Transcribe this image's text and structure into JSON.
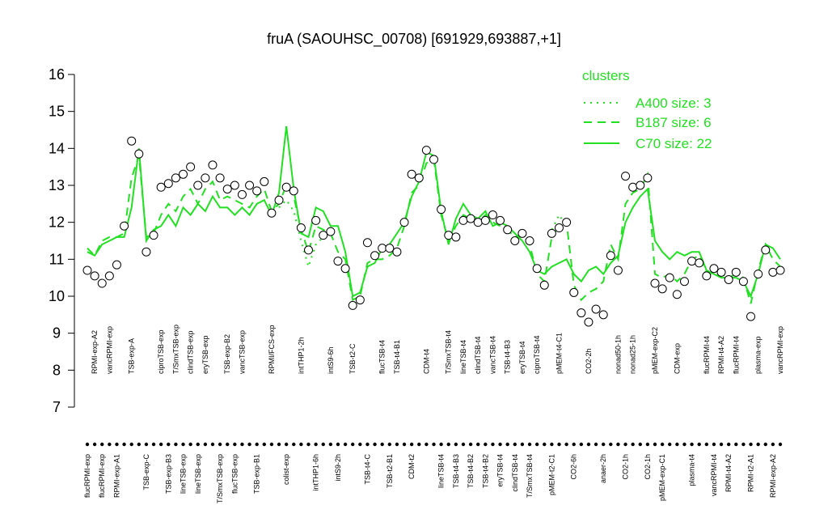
{
  "chart_data": {
    "type": "scatter",
    "title": "fruA (SAOUHSC_00708) [691929,693887,+1]",
    "ylim": [
      7,
      16
    ],
    "yticks": [
      7,
      8,
      9,
      10,
      11,
      12,
      13,
      14,
      15,
      16
    ],
    "grid": false,
    "legend_title": "clusters",
    "legend": "topright",
    "marker_color": "#000000",
    "categories": [
      "flucRPMI-exp",
      "RPMI-exp-A2",
      "flucRPMI-exp",
      "vancRPMI-exp",
      "RPMI-exp-A1",
      null,
      "TSB-exp-A",
      null,
      "TSB-exp-C",
      null,
      "ciproTSB-exp",
      "TSB-exp-B3",
      "T/SmxTSB-exp",
      "lineTSB-exp",
      "clindTSB-exp",
      "lineTSB-exp",
      "eryTSB-exp",
      null,
      "T/SmxTSB-exp",
      "TSB-exp-B2",
      "flucTSB-exp",
      "vancTSB-exp",
      null,
      "TSB-exp-B1",
      null,
      "RPMI/FCS-exp",
      null,
      "colist-exp",
      null,
      "intTHP1-2h",
      null,
      "intTHP1-6h",
      null,
      "intS9-6h",
      "intS9-2h",
      null,
      "TSB-t2-C",
      null,
      "TSB-t4-C",
      null,
      "flucTSB-t4",
      "TSB-t2-B1",
      "TSB-t4-B1",
      null,
      "CDM-t2",
      null,
      "CDM-t4",
      null,
      "lineTSB-t4",
      "T/SmxTSB-t4",
      "TSB-t4-B3",
      "lineTSB-t4",
      "TSB-t4-B2",
      "clindTSB-t4",
      "TSB-t4-B2",
      "vancTSB-t4",
      "eryTSB-t4",
      "TSB-t4-B3",
      "clindTSB-t4",
      "eryTSB-t4",
      "T/SmxTSB-t4",
      "ciproTSB-t4",
      null,
      "pMEM-t2-C1",
      "pMEM-t4-C1",
      null,
      "CO2-6h",
      null,
      "CO2-2h",
      null,
      "anaer-2h",
      null,
      "nonad50-1h",
      "CO2-1h",
      "nonad25-1h",
      null,
      "CO2-1h",
      "pMEM-exp-C2",
      "pMEM-exp-C1",
      null,
      "CDM-exp",
      null,
      "plasma-t4",
      null,
      "flucRPMI-t4",
      "vancRPMI-t4",
      "RPMI-t4-A2",
      "RPMI-t4-A2",
      "flucRPMI-t4",
      null,
      "RPMI-t2-A1",
      "plasma-exp",
      null,
      "RPMI-exp-A2",
      "vancRPMI-exp"
    ],
    "values": [
      10.7,
      10.55,
      10.35,
      10.55,
      10.85,
      11.9,
      14.2,
      13.85,
      11.2,
      11.65,
      12.95,
      13.05,
      13.2,
      13.3,
      13.5,
      13.0,
      13.2,
      13.55,
      13.2,
      12.9,
      13.0,
      12.75,
      13.0,
      12.85,
      13.1,
      12.25,
      12.6,
      12.95,
      12.85,
      11.85,
      11.25,
      12.05,
      11.65,
      11.75,
      10.95,
      10.75,
      9.75,
      9.9,
      11.45,
      11.1,
      11.3,
      11.3,
      11.2,
      12.0,
      13.3,
      13.2,
      13.95,
      13.7,
      12.35,
      11.65,
      11.6,
      12.05,
      12.1,
      12.0,
      12.05,
      12.2,
      12.05,
      11.8,
      11.5,
      11.7,
      11.5,
      10.75,
      10.3,
      11.7,
      11.85,
      12.0,
      10.1,
      9.55,
      9.3,
      9.65,
      9.5,
      11.1,
      10.7,
      13.25,
      12.95,
      13.0,
      13.2,
      10.35,
      10.2,
      10.5,
      10.05,
      10.4,
      10.95,
      10.9,
      10.55,
      10.75,
      10.65,
      10.45,
      10.65,
      10.4,
      9.45,
      10.6,
      11.25,
      10.65,
      10.7
    ],
    "series": [
      {
        "name": "A400 size: 3",
        "color": "#22e022",
        "style": "dotted",
        "values": [
          null,
          null,
          null,
          null,
          null,
          null,
          null,
          null,
          null,
          null,
          null,
          null,
          null,
          null,
          null,
          null,
          null,
          null,
          null,
          null,
          null,
          null,
          null,
          null,
          null,
          null,
          12.4,
          12.6,
          12.3,
          11.5,
          10.8,
          11.4,
          11.6,
          null,
          null,
          null,
          null,
          null,
          null,
          null,
          null,
          null,
          null,
          null,
          null,
          null,
          null,
          null,
          null,
          null,
          null,
          null,
          null,
          null,
          null,
          null,
          null,
          null,
          null,
          null,
          null,
          null,
          null,
          11.8,
          12.2,
          11.9,
          null,
          null,
          null,
          null,
          null,
          null,
          null,
          null,
          null,
          null,
          null,
          null,
          null,
          null,
          null,
          null,
          null,
          null,
          null,
          null,
          null,
          null,
          null,
          null,
          null,
          null,
          null,
          null,
          null
        ]
      },
      {
        "name": "B187 size: 6",
        "color": "#22e022",
        "style": "dashed",
        "values": [
          11.3,
          11.1,
          11.5,
          11.6,
          11.6,
          11.7,
          13.2,
          13.8,
          11.6,
          11.7,
          12.2,
          12.5,
          12.3,
          12.7,
          12.9,
          12.5,
          12.9,
          13.1,
          12.6,
          12.7,
          12.6,
          12.5,
          12.4,
          12.7,
          12.9,
          12.3,
          12.5,
          13.0,
          12.7,
          11.8,
          11.2,
          11.9,
          11.8,
          11.7,
          11.2,
          11.0,
          9.9,
          10.0,
          10.9,
          11.0,
          11.0,
          11.1,
          11.3,
          11.9,
          12.8,
          13.0,
          13.6,
          13.7,
          12.2,
          11.5,
          11.9,
          12.2,
          12.1,
          12.0,
          12.2,
          12.0,
          11.9,
          11.8,
          11.6,
          11.7,
          11.4,
          10.6,
          10.4,
          11.6,
          11.9,
          12.0,
          10.3,
          9.9,
          10.1,
          10.2,
          10.4,
          11.4,
          11.0,
          12.5,
          12.8,
          12.9,
          13.3,
          10.6,
          10.5,
          10.6,
          10.4,
          10.6,
          11.0,
          11.1,
          10.6,
          10.6,
          10.6,
          10.5,
          10.6,
          10.5,
          9.8,
          10.7,
          11.4,
          11.0,
          10.8
        ]
      },
      {
        "name": "C70 size: 22",
        "color": "#22e022",
        "style": "solid",
        "values": [
          11.2,
          11.1,
          11.4,
          11.5,
          11.6,
          11.6,
          12.4,
          14.0,
          11.5,
          11.8,
          11.9,
          12.2,
          11.9,
          12.4,
          12.2,
          12.5,
          12.3,
          12.7,
          12.4,
          12.4,
          12.2,
          12.4,
          12.2,
          12.5,
          12.6,
          12.2,
          12.8,
          14.6,
          12.9,
          11.7,
          11.6,
          12.4,
          12.3,
          11.9,
          11.9,
          11.2,
          10.0,
          10.1,
          10.8,
          10.9,
          11.3,
          11.4,
          11.7,
          12.0,
          12.7,
          13.1,
          13.9,
          13.8,
          12.3,
          11.4,
          12.1,
          12.5,
          12.2,
          12.1,
          12.3,
          11.9,
          12.0,
          11.9,
          11.7,
          11.5,
          11.2,
          10.7,
          10.6,
          10.8,
          10.9,
          11.0,
          10.6,
          10.4,
          10.7,
          10.8,
          10.6,
          10.9,
          11.1,
          12.0,
          12.4,
          12.7,
          12.9,
          11.5,
          11.2,
          11.0,
          11.2,
          11.1,
          11.2,
          11.2,
          10.7,
          10.6,
          10.5,
          10.5,
          10.5,
          10.4,
          10.0,
          10.6,
          11.4,
          11.3,
          11.0
        ]
      }
    ]
  }
}
